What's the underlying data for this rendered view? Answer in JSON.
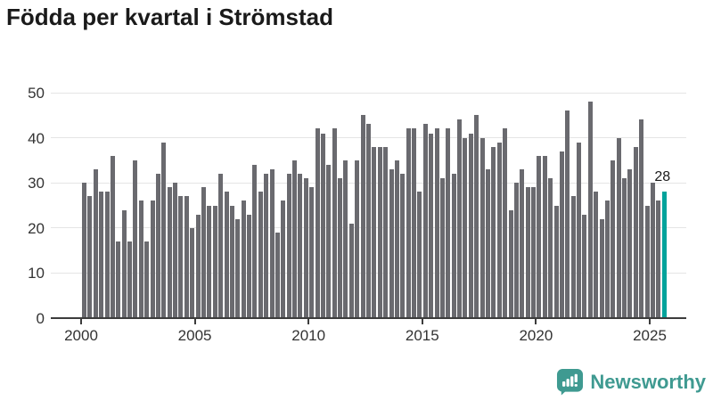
{
  "title": "Födda per kvartal i Strömstad",
  "colors": {
    "bar": "#6a6a6f",
    "highlight": "#00a39b",
    "grid": "#e4e4e4",
    "axis": "#3c3c3c",
    "tick_label": "#333333",
    "logo_teal": "#3f9a91"
  },
  "chart_data": {
    "type": "bar",
    "title": "Födda per kvartal i Strömstad",
    "x_start": "2000 Q1",
    "x_end": "2025 Q3",
    "x_tick_labels": [
      "2000",
      "2005",
      "2010",
      "2015",
      "2020",
      "2025"
    ],
    "y_ticks": [
      0,
      10,
      20,
      30,
      40,
      50
    ],
    "ylim": [
      0,
      50
    ],
    "grid": "horizontal",
    "legend": "none",
    "values": [
      30,
      27,
      33,
      28,
      28,
      36,
      17,
      24,
      17,
      35,
      26,
      17,
      26,
      32,
      39,
      29,
      30,
      27,
      27,
      20,
      23,
      29,
      25,
      25,
      32,
      28,
      25,
      22,
      26,
      23,
      34,
      28,
      32,
      33,
      19,
      26,
      32,
      35,
      32,
      31,
      29,
      42,
      41,
      34,
      42,
      31,
      35,
      21,
      35,
      45,
      43,
      38,
      38,
      38,
      33,
      35,
      32,
      42,
      42,
      28,
      43,
      41,
      42,
      31,
      42,
      32,
      44,
      40,
      41,
      45,
      40,
      33,
      38,
      39,
      42,
      24,
      30,
      33,
      29,
      29,
      36,
      36,
      31,
      25,
      37,
      46,
      27,
      39,
      23,
      48,
      28,
      22,
      26,
      35,
      40,
      31,
      33,
      38,
      44,
      25,
      30,
      26,
      28
    ],
    "highlight_last_bar": true,
    "last_value_label": "28"
  },
  "logo": {
    "text": "Newsworthy",
    "icon": "bar-chart-speech-bubble"
  }
}
